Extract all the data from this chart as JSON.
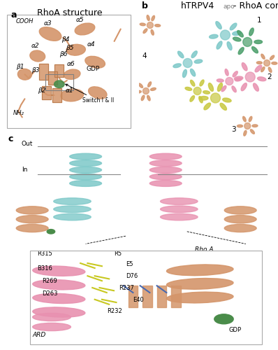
{
  "fig_width": 3.98,
  "fig_height": 5.0,
  "dpi": 100,
  "background": "#ffffff",
  "panel_a": {
    "label": "a",
    "title": "RhoA structure",
    "protein_color": "#d4956a",
    "gdp_color": "#4a8c4a"
  },
  "panel_b": {
    "label": "b",
    "title": "hTRPV4",
    "title_apo": "apo",
    "title_rest": " - RhoA complex",
    "subunit_labels": [
      "1",
      "2",
      "3",
      "4"
    ],
    "colors": {
      "cyan": "#7dc8c8",
      "pink": "#e891b0",
      "olive": "#c8c840",
      "rhoa": "#d4956a",
      "dark_green": "#4a9e6a"
    }
  },
  "panel_c": {
    "label": "c",
    "out_label": "Out",
    "in_label": "In",
    "colors": {
      "cyan": "#7dc8c8",
      "pink": "#e891b0",
      "wheat": "#d4956a",
      "yellow_sticks": "#c8c820",
      "blue_sticks": "#4a6ab0",
      "green_gdp": "#4a8c4a"
    }
  },
  "font_size_panel_label": 9,
  "font_size_title": 9,
  "font_size_annotation": 6.5,
  "font_size_inset": 6,
  "wheat_color": "#d4956a"
}
